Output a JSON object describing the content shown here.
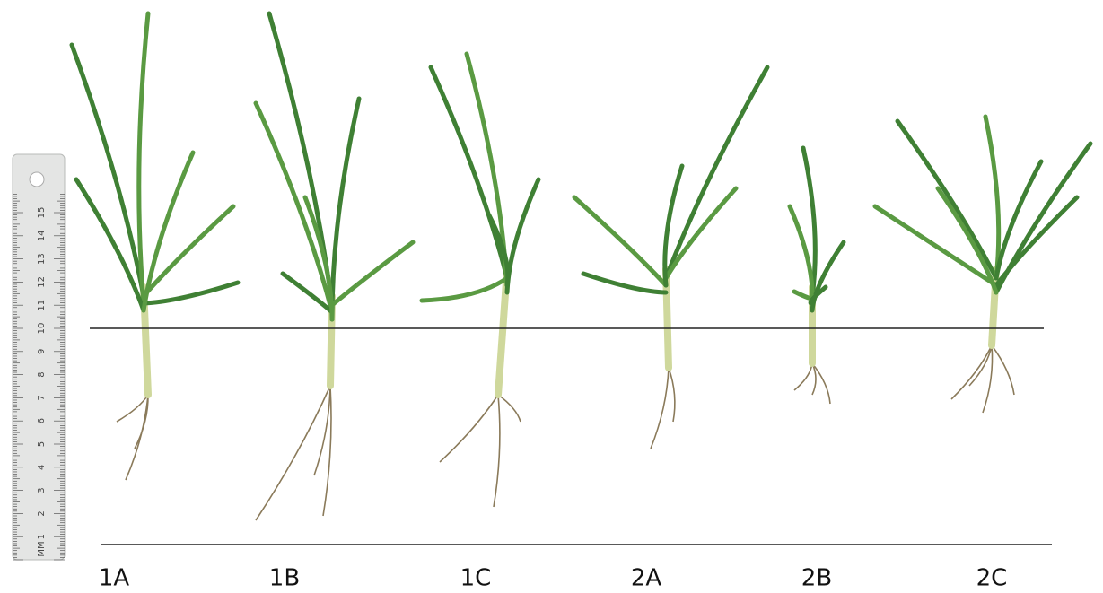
{
  "labels": [
    "1A",
    "1B",
    "1C",
    "2A",
    "2B",
    "2C"
  ],
  "ruler": {
    "unit": "MM",
    "numbers": [
      "1",
      "2",
      "3",
      "4",
      "5",
      "6",
      "7",
      "8",
      "9",
      "10",
      "11",
      "12",
      "13",
      "14",
      "15"
    ]
  }
}
